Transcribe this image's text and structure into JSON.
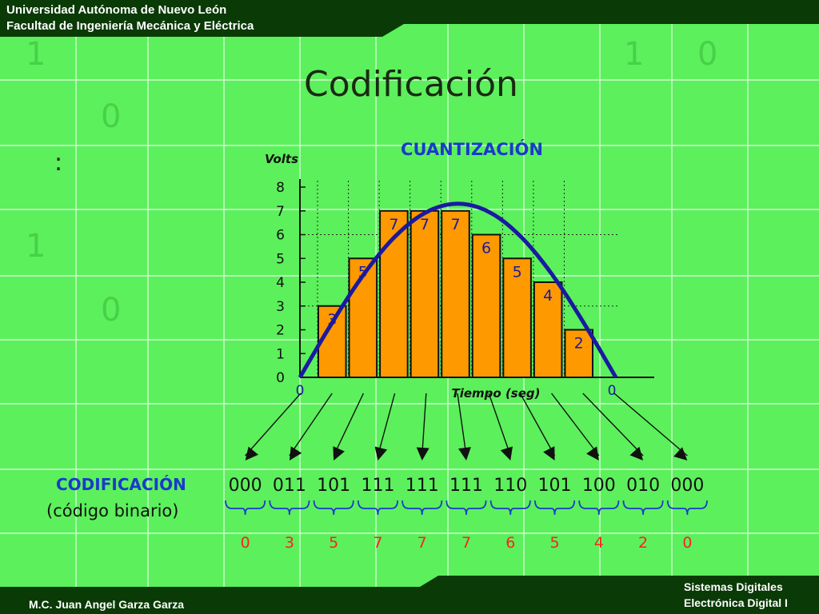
{
  "header": {
    "line1": "Universidad Autónoma de Nuevo León",
    "line2": "Facultad de Ingeniería Mecánica y Eléctrica"
  },
  "slide_title": "Codificación",
  "colon": ":",
  "background_digits": [
    "1",
    "1",
    "0",
    "0",
    "1",
    "0"
  ],
  "chart_data": {
    "type": "bar",
    "title": "CUANTIZACIÓN",
    "ylabel": "Volts",
    "xlabel": "Tiempo (seg)",
    "ylim": [
      0,
      8
    ],
    "yticks": [
      "0",
      "1",
      "2",
      "3",
      "4",
      "5",
      "6",
      "7",
      "8"
    ],
    "x_start_label": "0",
    "x_end_label": "0",
    "values": [
      3,
      5,
      7,
      7,
      7,
      6,
      5,
      4,
      2
    ],
    "bar_labels": [
      "3",
      "5",
      "7",
      "7",
      "7",
      "6",
      "5",
      "4",
      "2"
    ],
    "curve": "sine half-wave, peak about 7.3 V",
    "colors": {
      "bar": "#ff9900",
      "curve": "#1a1aa0",
      "title": "#1a3acc"
    }
  },
  "encoding": {
    "title": "CODIFICACIÓN",
    "subtitle": "(código binario)",
    "codes": [
      "000",
      "011",
      "101",
      "111",
      "111",
      "111",
      "110",
      "101",
      "100",
      "010",
      "000"
    ],
    "decimals": [
      "0",
      "3",
      "5",
      "7",
      "7",
      "7",
      "6",
      "5",
      "4",
      "2",
      "0"
    ],
    "colors": {
      "title": "#1a3acc",
      "decimal": "#ff2020",
      "brace": "#1a3acc"
    }
  },
  "footer": {
    "author": "M.C. Juan Angel Garza Garza",
    "course1": "Sistemas Digitales",
    "course2": "Electrónica Digital I"
  },
  "colors": {
    "band": "#0a3a06",
    "background": "#5cf05c",
    "grid": "#f0fff0"
  }
}
